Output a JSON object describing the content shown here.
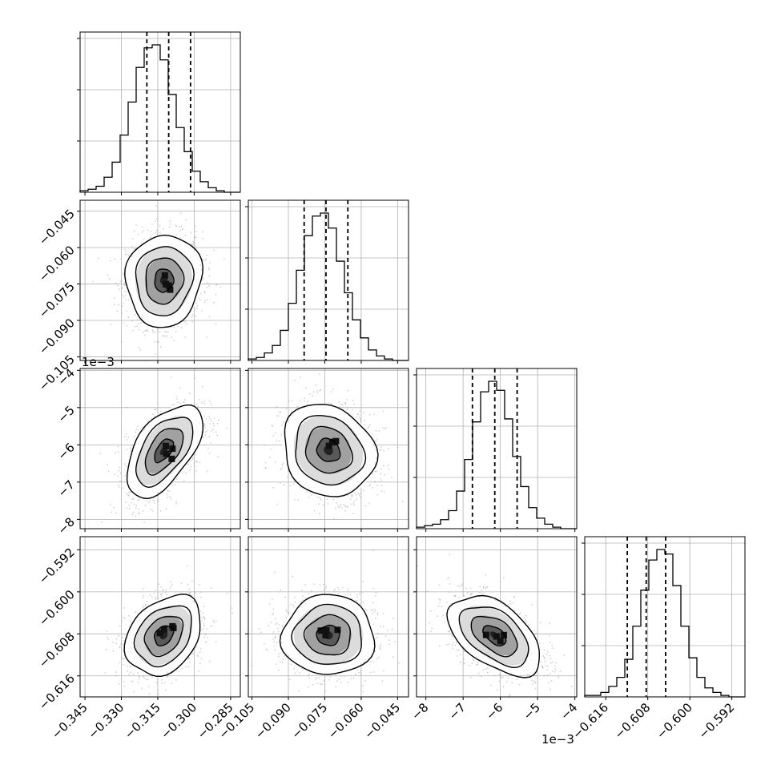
{
  "chart_data": {
    "type": "corner",
    "params": [
      {
        "ticks": [
          -0.345,
          -0.33,
          -0.315,
          -0.3,
          -0.285
        ],
        "tick_labels": [
          "−0.345",
          "−0.330",
          "−0.315",
          "−0.300",
          "−0.285"
        ],
        "range": [
          -0.347,
          -0.281
        ],
        "quantiles": [
          -0.3195,
          -0.3105,
          -0.3015
        ],
        "offset_label": ""
      },
      {
        "ticks": [
          -0.105,
          -0.09,
          -0.075,
          -0.06,
          -0.045
        ],
        "tick_labels": [
          "−0.105",
          "−0.090",
          "−0.075",
          "−0.060",
          "−0.045"
        ],
        "range": [
          -0.1065,
          -0.0405
        ],
        "quantiles": [
          -0.0835,
          -0.0745,
          -0.0655
        ],
        "offset_label": ""
      },
      {
        "ticks": [
          -8,
          -7,
          -6,
          -5,
          -4
        ],
        "tick_labels": [
          "−8",
          "−7",
          "−6",
          "−5",
          "−4"
        ],
        "range": [
          -8.25,
          -3.95
        ],
        "quantiles": [
          -6.75,
          -6.15,
          -5.55
        ],
        "offset_label": "1e−3"
      },
      {
        "ticks": [
          -0.616,
          -0.608,
          -0.6,
          -0.592
        ],
        "tick_labels": [
          "−0.616",
          "−0.608",
          "−0.600",
          "−0.592"
        ],
        "range": [
          -0.62,
          -0.5895
        ],
        "quantiles": [
          -0.6119,
          -0.6083,
          -0.6046
        ],
        "offset_label": ""
      }
    ],
    "histograms": [
      [
        1,
        2,
        4,
        10,
        20,
        38,
        60,
        83,
        96,
        98,
        88,
        65,
        43,
        27,
        14,
        7,
        3,
        1,
        0,
        0
      ],
      [
        1,
        2,
        5,
        10,
        20,
        38,
        60,
        83,
        96,
        98,
        88,
        66,
        45,
        27,
        15,
        7,
        3,
        1,
        0,
        0
      ],
      [
        1,
        2,
        3,
        6,
        12,
        25,
        46,
        71,
        91,
        98,
        92,
        73,
        48,
        28,
        14,
        7,
        3,
        1,
        0,
        0
      ],
      [
        1,
        1,
        3,
        7,
        13,
        25,
        47,
        71,
        91,
        98,
        95,
        74,
        47,
        26,
        13,
        6,
        3,
        1,
        0,
        0
      ]
    ],
    "pairs": [
      {
        "row": 1,
        "col": 0,
        "mean": [
          -0.3125,
          -0.0735
        ],
        "sd": [
          0.0078,
          0.0095
        ],
        "corr": 0.05
      },
      {
        "row": 2,
        "col": 0,
        "mean": [
          -0.3125,
          -6.15
        ],
        "sd": [
          0.0078,
          0.62
        ],
        "corr": 0.55
      },
      {
        "row": 2,
        "col": 1,
        "mean": [
          -0.0735,
          -6.15
        ],
        "sd": [
          0.0095,
          0.62
        ],
        "corr": -0.15
      },
      {
        "row": 3,
        "col": 0,
        "mean": [
          -0.3125,
          -0.6083
        ],
        "sd": [
          0.0078,
          0.0038
        ],
        "corr": 0.3
      },
      {
        "row": 3,
        "col": 1,
        "mean": [
          -0.0735,
          -0.6083
        ],
        "sd": [
          0.0095,
          0.0038
        ],
        "corr": 0.0
      },
      {
        "row": 3,
        "col": 2,
        "mean": [
          -6.15,
          -0.6083
        ],
        "sd": [
          0.62,
          0.0038
        ],
        "corr": -0.5
      }
    ],
    "contour_levels_sigma": [
      0.5,
      1.0,
      1.5,
      2.0
    ],
    "grid": true,
    "colors": {
      "line": "#000000",
      "grid": "#b0b0b0",
      "scatter": "#9a9a9a",
      "density_dark": "#000000"
    }
  }
}
